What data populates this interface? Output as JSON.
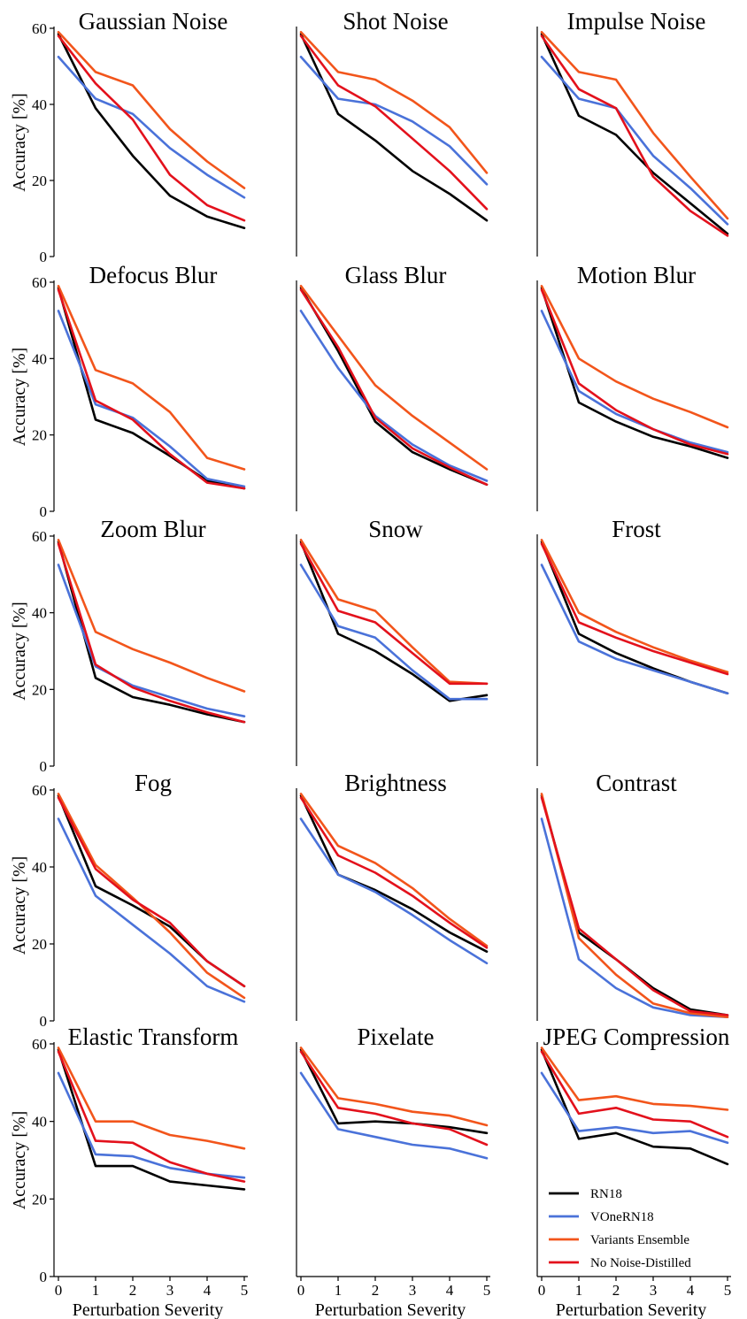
{
  "colors": {
    "RN18": "#000000",
    "VOneRN18": "#4a72d9",
    "Variants Ensemble": "#f2551b",
    "No Noise-Distilled": "#e3111c"
  },
  "chart_data": {
    "type": "line",
    "x": [
      0,
      1,
      2,
      3,
      4,
      5
    ],
    "xlabel": "Perturbation Severity",
    "ylabel": "Accuracy [%]",
    "ylim": [
      0,
      60
    ],
    "yticks": [
      0,
      20,
      40,
      60
    ],
    "xticks": [
      0,
      1,
      2,
      3,
      4,
      5
    ],
    "grid": false,
    "legend_placement": "bottom-right panel",
    "legend": [
      "RN18",
      "VOneRN18",
      "Variants Ensemble",
      "No Noise-Distilled"
    ],
    "panels": [
      {
        "title": "Gaussian Noise",
        "series": [
          {
            "name": "RN18",
            "values": [
              58.5,
              39,
              26.5,
              16,
              10.5,
              7.5
            ]
          },
          {
            "name": "VOneRN18",
            "values": [
              52.5,
              41.5,
              37.5,
              28.5,
              21.5,
              15.5
            ]
          },
          {
            "name": "Variants Ensemble",
            "values": [
              59,
              48.5,
              45,
              33.5,
              25,
              18
            ]
          },
          {
            "name": "No Noise-Distilled",
            "values": [
              58,
              45.5,
              36,
              21.5,
              13.5,
              9.5
            ]
          }
        ]
      },
      {
        "title": "Shot Noise",
        "series": [
          {
            "name": "RN18",
            "values": [
              58.5,
              37.5,
              30.5,
              22.5,
              16.5,
              9.5
            ]
          },
          {
            "name": "VOneRN18",
            "values": [
              52.5,
              41.5,
              40,
              35.5,
              29,
              19
            ]
          },
          {
            "name": "Variants Ensemble",
            "values": [
              59,
              48.5,
              46.5,
              41,
              34,
              22
            ]
          },
          {
            "name": "No Noise-Distilled",
            "values": [
              58,
              45,
              39.5,
              31,
              22.5,
              12.5
            ]
          }
        ]
      },
      {
        "title": "Impulse Noise",
        "series": [
          {
            "name": "RN18",
            "values": [
              58.5,
              37,
              32,
              22,
              14,
              6
            ]
          },
          {
            "name": "VOneRN18",
            "values": [
              52.5,
              41.5,
              39,
              26.5,
              18,
              8.5
            ]
          },
          {
            "name": "Variants Ensemble",
            "values": [
              59,
              48.5,
              46.5,
              32.5,
              21,
              10
            ]
          },
          {
            "name": "No Noise-Distilled",
            "values": [
              58,
              44,
              39,
              21,
              12,
              5.5
            ]
          }
        ]
      },
      {
        "title": "Defocus Blur",
        "series": [
          {
            "name": "RN18",
            "values": [
              58.5,
              24,
              20.5,
              14.5,
              8,
              6
            ]
          },
          {
            "name": "VOneRN18",
            "values": [
              52.5,
              28,
              24.5,
              17,
              8.5,
              6.5
            ]
          },
          {
            "name": "Variants Ensemble",
            "values": [
              59,
              37,
              33.5,
              26,
              14,
              11
            ]
          },
          {
            "name": "No Noise-Distilled",
            "values": [
              58,
              29,
              24,
              15,
              7.5,
              6
            ]
          }
        ]
      },
      {
        "title": "Glass Blur",
        "series": [
          {
            "name": "RN18",
            "values": [
              58.5,
              42,
              23.5,
              15.5,
              11,
              7
            ]
          },
          {
            "name": "VOneRN18",
            "values": [
              52.5,
              37.5,
              25,
              17.5,
              12,
              8
            ]
          },
          {
            "name": "Variants Ensemble",
            "values": [
              59,
              46,
              33,
              25,
              18,
              11
            ]
          },
          {
            "name": "No Noise-Distilled",
            "values": [
              58,
              43,
              24.5,
              16.5,
              11.5,
              7
            ]
          }
        ]
      },
      {
        "title": "Motion Blur",
        "series": [
          {
            "name": "RN18",
            "values": [
              58.5,
              28.5,
              23.5,
              19.5,
              17,
              14
            ]
          },
          {
            "name": "VOneRN18",
            "values": [
              52.5,
              31.5,
              25.5,
              21.5,
              18,
              15.5
            ]
          },
          {
            "name": "Variants Ensemble",
            "values": [
              59,
              40,
              34,
              29.5,
              26,
              22
            ]
          },
          {
            "name": "No Noise-Distilled",
            "values": [
              58,
              33.5,
              26.5,
              21.5,
              17.5,
              15
            ]
          }
        ]
      },
      {
        "title": "Zoom Blur",
        "series": [
          {
            "name": "RN18",
            "values": [
              58.5,
              23,
              18,
              16,
              13.5,
              11.5
            ]
          },
          {
            "name": "VOneRN18",
            "values": [
              52.5,
              26,
              21,
              18,
              15,
              13
            ]
          },
          {
            "name": "Variants Ensemble",
            "values": [
              59,
              35,
              30.5,
              27,
              23,
              19.5
            ]
          },
          {
            "name": "No Noise-Distilled",
            "values": [
              58,
              26.5,
              20.5,
              17,
              14,
              11.5
            ]
          }
        ]
      },
      {
        "title": "Snow",
        "series": [
          {
            "name": "RN18",
            "values": [
              58.5,
              34.5,
              30,
              24,
              17,
              18.5
            ]
          },
          {
            "name": "VOneRN18",
            "values": [
              52.5,
              36.5,
              33.5,
              25,
              17.5,
              17.5
            ]
          },
          {
            "name": "Variants Ensemble",
            "values": [
              59,
              43.5,
              40.5,
              31,
              22,
              21.5
            ]
          },
          {
            "name": "No Noise-Distilled",
            "values": [
              58,
              40.5,
              37.5,
              29.5,
              21.5,
              21.5
            ]
          }
        ]
      },
      {
        "title": "Frost",
        "series": [
          {
            "name": "RN18",
            "values": [
              58.5,
              34.5,
              29.5,
              25.5,
              22,
              19
            ]
          },
          {
            "name": "VOneRN18",
            "values": [
              52.5,
              32.5,
              28,
              25,
              22,
              19
            ]
          },
          {
            "name": "Variants Ensemble",
            "values": [
              59,
              40,
              35,
              31,
              27.5,
              24.5
            ]
          },
          {
            "name": "No Noise-Distilled",
            "values": [
              58,
              37.5,
              33.5,
              30,
              27,
              24
            ]
          }
        ]
      },
      {
        "title": "Fog",
        "series": [
          {
            "name": "RN18",
            "values": [
              58.5,
              35,
              30,
              24.5,
              15.5,
              9
            ]
          },
          {
            "name": "VOneRN18",
            "values": [
              52.5,
              32.5,
              25,
              17.5,
              9,
              5
            ]
          },
          {
            "name": "Variants Ensemble",
            "values": [
              59,
              40.5,
              32,
              23,
              12.5,
              6
            ]
          },
          {
            "name": "No Noise-Distilled",
            "values": [
              58,
              39.5,
              31.5,
              25.5,
              15.5,
              9
            ]
          }
        ]
      },
      {
        "title": "Brightness",
        "series": [
          {
            "name": "RN18",
            "values": [
              58.5,
              38,
              34,
              29,
              23,
              18
            ]
          },
          {
            "name": "VOneRN18",
            "values": [
              52.5,
              38,
              33.5,
              27.5,
              21,
              15
            ]
          },
          {
            "name": "Variants Ensemble",
            "values": [
              59,
              45.5,
              41,
              34.5,
              26.5,
              19.5
            ]
          },
          {
            "name": "No Noise-Distilled",
            "values": [
              58,
              43,
              38.5,
              32.5,
              25.5,
              19
            ]
          }
        ]
      },
      {
        "title": "Contrast",
        "series": [
          {
            "name": "RN18",
            "values": [
              58.5,
              23,
              16,
              8.5,
              3,
              1.5
            ]
          },
          {
            "name": "VOneRN18",
            "values": [
              52.5,
              16,
              8.5,
              3.5,
              1.5,
              1
            ]
          },
          {
            "name": "Variants Ensemble",
            "values": [
              59,
              21.5,
              12,
              4.5,
              2,
              1
            ]
          },
          {
            "name": "No Noise-Distilled",
            "values": [
              58,
              24,
              16,
              8,
              2.5,
              1.5
            ]
          }
        ]
      },
      {
        "title": "Elastic Transform",
        "series": [
          {
            "name": "RN18",
            "values": [
              58.5,
              28.5,
              28.5,
              24.5,
              23.5,
              22.5
            ]
          },
          {
            "name": "VOneRN18",
            "values": [
              52.5,
              31.5,
              31,
              28,
              26.5,
              25.5
            ]
          },
          {
            "name": "Variants Ensemble",
            "values": [
              59,
              40,
              40,
              36.5,
              35,
              33
            ]
          },
          {
            "name": "No Noise-Distilled",
            "values": [
              58,
              35,
              34.5,
              29.5,
              26.5,
              24.5
            ]
          }
        ]
      },
      {
        "title": "Pixelate",
        "series": [
          {
            "name": "RN18",
            "values": [
              58.5,
              39.5,
              40,
              39.5,
              38.5,
              37
            ]
          },
          {
            "name": "VOneRN18",
            "values": [
              52.5,
              38,
              36,
              34,
              33,
              30.5
            ]
          },
          {
            "name": "Variants Ensemble",
            "values": [
              59,
              46,
              44.5,
              42.5,
              41.5,
              39
            ]
          },
          {
            "name": "No Noise-Distilled",
            "values": [
              58,
              43.5,
              42,
              39.5,
              38,
              34
            ]
          }
        ]
      },
      {
        "title": "JPEG Compression",
        "series": [
          {
            "name": "RN18",
            "values": [
              58.5,
              35.5,
              37,
              33.5,
              33,
              29
            ]
          },
          {
            "name": "VOneRN18",
            "values": [
              52.5,
              37.5,
              38.5,
              37,
              37.5,
              34.5
            ]
          },
          {
            "name": "Variants Ensemble",
            "values": [
              59,
              45.5,
              46.5,
              44.5,
              44,
              43
            ]
          },
          {
            "name": "No Noise-Distilled",
            "values": [
              58,
              42,
              43.5,
              40.5,
              40,
              36
            ]
          }
        ]
      }
    ]
  }
}
